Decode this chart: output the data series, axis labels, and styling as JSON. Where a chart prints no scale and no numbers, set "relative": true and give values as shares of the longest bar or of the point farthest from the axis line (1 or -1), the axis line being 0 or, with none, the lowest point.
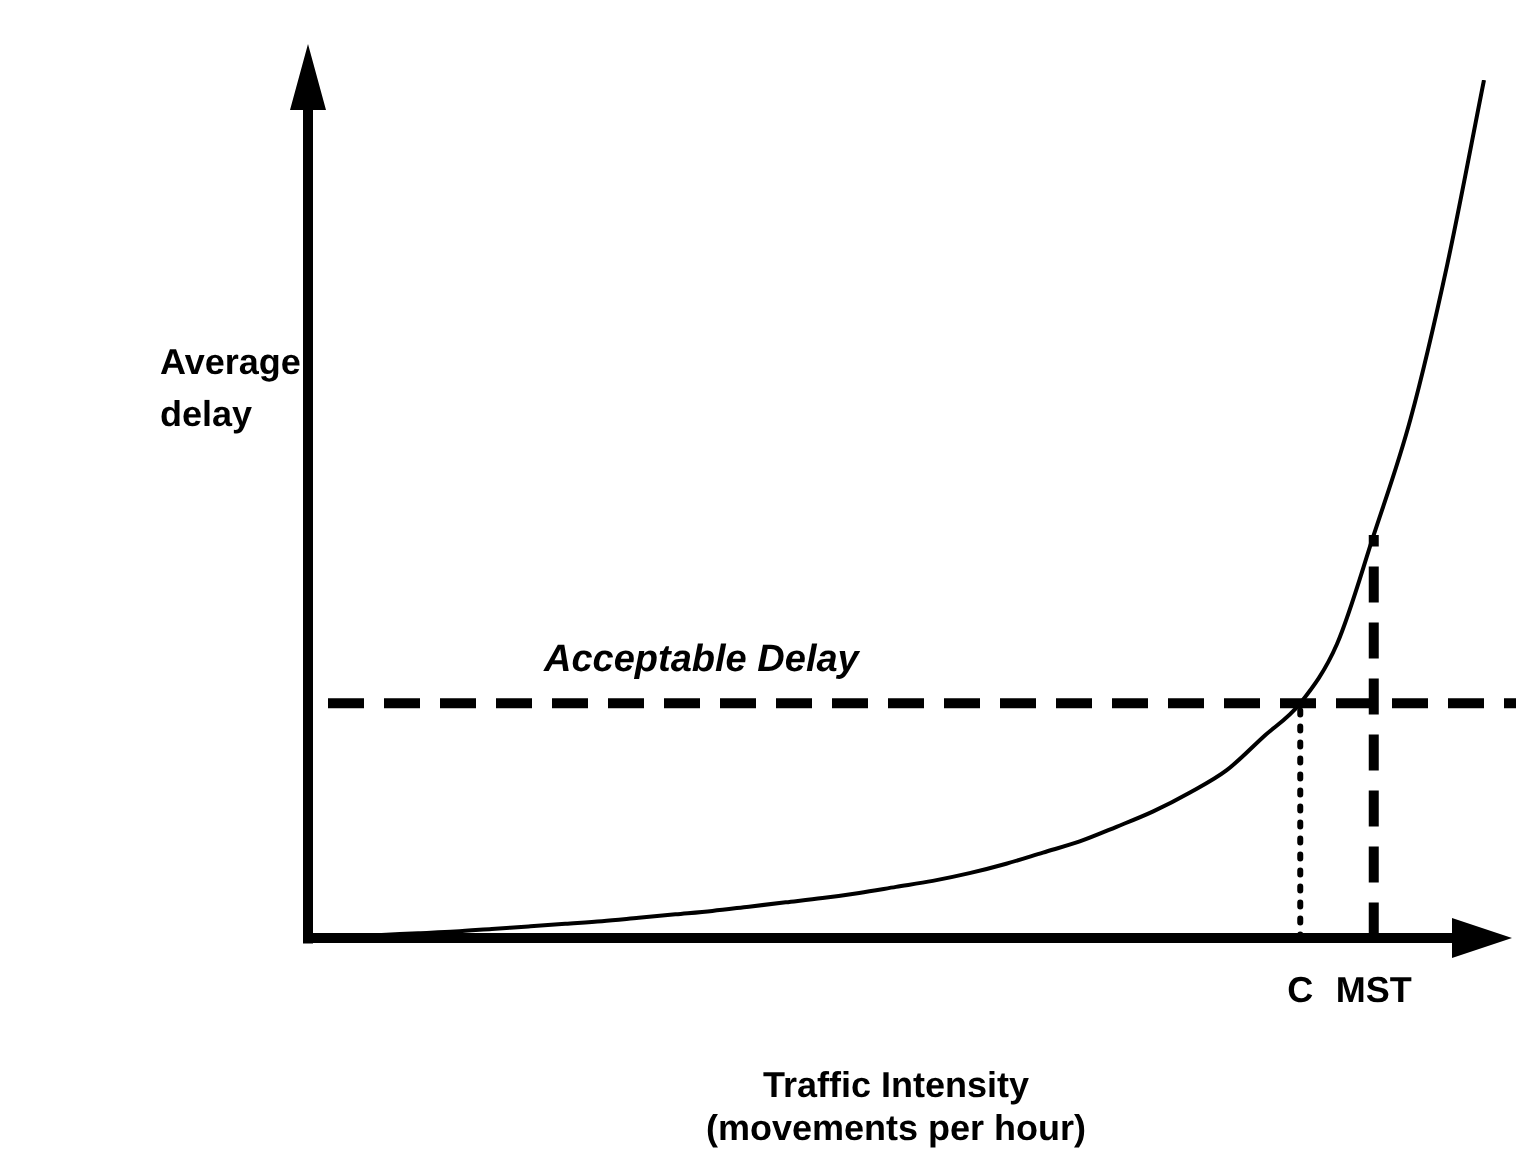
{
  "chart_data": {
    "type": "line",
    "relative": true,
    "xlabel": "Traffic Intensity\n(movements per hour)",
    "ylabel": "Average\ndelay",
    "categories": [
      null,
      null,
      null,
      null,
      null,
      null,
      null,
      null,
      null,
      null,
      null,
      null,
      null,
      null,
      null,
      null,
      null,
      null,
      null,
      null,
      null,
      null,
      null,
      null,
      null,
      null,
      null,
      "C",
      null,
      "MST",
      null,
      null,
      null
    ],
    "series": [
      {
        "color": "#000000",
        "values": [
          0,
          0.002,
          0.004,
          0.006,
          0.008,
          0.011,
          0.014,
          0.017,
          0.02,
          0.024,
          0.028,
          0.032,
          0.037,
          0.042,
          0.047,
          0.053,
          0.06,
          0.067,
          0.076,
          0.087,
          0.1,
          0.113,
          0.13,
          0.148,
          0.17,
          0.196,
          0.235,
          0.274,
          0.343,
          0.47,
          0.605,
          0.785,
          1
        ]
      }
    ],
    "ref_lines": [
      {
        "axis": "y",
        "value": 0.274,
        "label": "Acceptable Delay",
        "color": "#000000",
        "line_style": "dashed"
      },
      {
        "axis": "x",
        "value": "C",
        "color": "#000000",
        "line_style": "dotted"
      },
      {
        "axis": "x",
        "value": "MST",
        "color": "#000000",
        "line_style": "dashed"
      }
    ],
    "legend": false,
    "grid": false,
    "marker": "none"
  }
}
